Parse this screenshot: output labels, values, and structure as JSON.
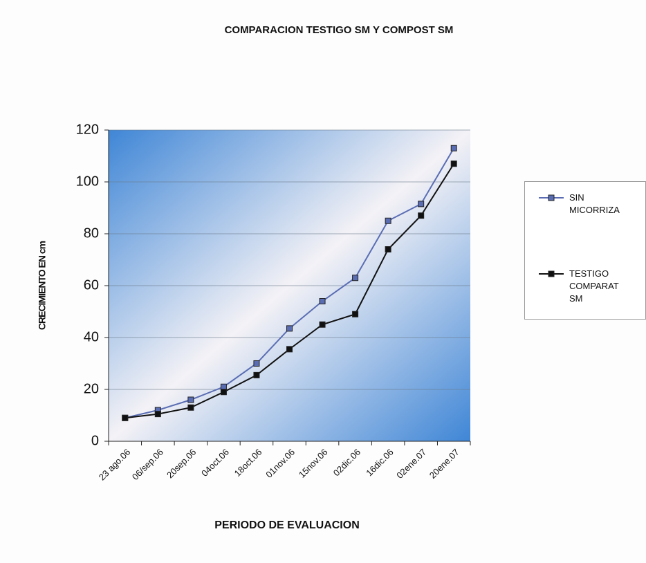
{
  "chart_data": {
    "type": "line",
    "title": "COMPARACION TESTIGO SM Y COMPOST SM",
    "x_label": "PERIODO DE EVALUACION",
    "y_label": "CRECIMIENTO EN cm",
    "categories": [
      "23 ago.06",
      "06/sep.06",
      "20sep.06",
      "04oct.06",
      "18oct.06",
      "01nov.06",
      "15nov.06",
      "02dic.06",
      "16dic.06",
      "02ene.07",
      "20ene.07"
    ],
    "series": [
      {
        "name": "SIN MICORRIZA",
        "color": "#5a6db3",
        "values": [
          9,
          12,
          16,
          21,
          30,
          43.5,
          54,
          63,
          85,
          91.5,
          113
        ]
      },
      {
        "name": "TESTIGO COMPARAT SM",
        "color": "#111111",
        "values": [
          9,
          10.5,
          13,
          19,
          25.5,
          35.5,
          45,
          49,
          74,
          87,
          107
        ]
      }
    ],
    "ylim": [
      0,
      120
    ],
    "yticks": [
      0,
      20,
      40,
      60,
      80,
      100,
      120
    ],
    "grid": true,
    "legend": "right"
  }
}
